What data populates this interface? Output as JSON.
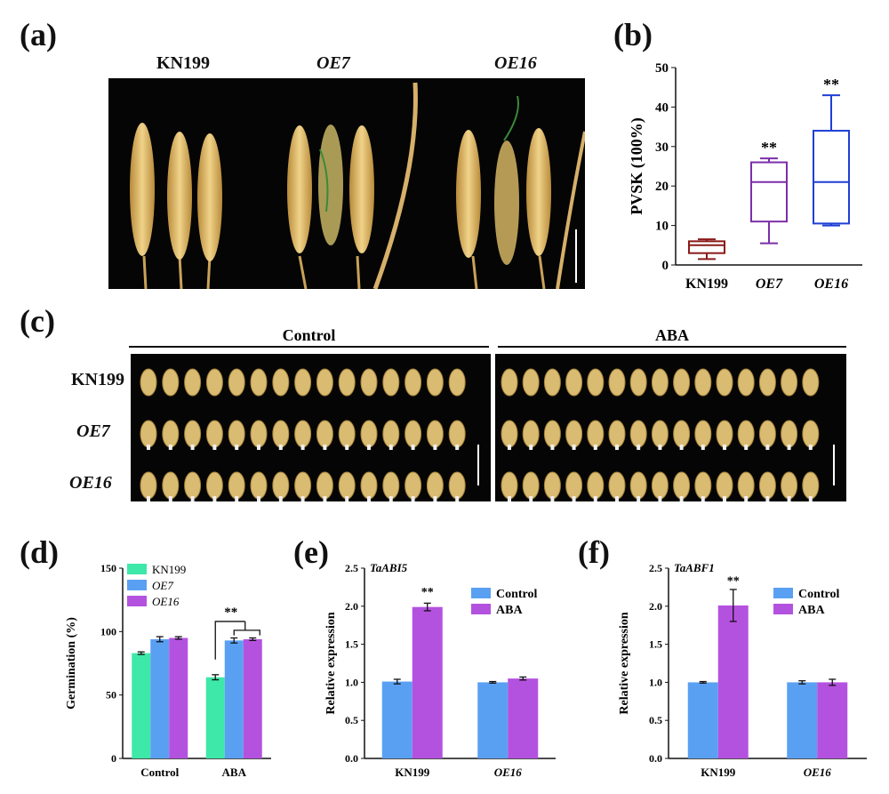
{
  "panels": {
    "a": "(a)",
    "b": "(b)",
    "c": "(c)",
    "d": "(d)",
    "e": "(e)",
    "f": "(f)"
  },
  "panel_a": {
    "genotypes": [
      "KN199",
      "OE7",
      "OE16"
    ]
  },
  "panel_c": {
    "conditions": [
      "Control",
      "ABA"
    ],
    "genotypes": [
      "KN199",
      "OE7",
      "OE16"
    ]
  },
  "chart_data": [
    {
      "id": "b",
      "type": "box",
      "ylabel": "PVSK (100%)",
      "categories": [
        "KN199",
        "OE7",
        "OE16"
      ],
      "ylim": [
        0,
        50
      ],
      "yticks": [
        0,
        10,
        20,
        30,
        40,
        50
      ],
      "boxes": [
        {
          "min": 1.5,
          "q1": 3.0,
          "median": 5.0,
          "q3": 6.0,
          "max": 6.5,
          "color": "#8b1a1a",
          "sig": ""
        },
        {
          "min": 5.5,
          "q1": 11.0,
          "median": 21.0,
          "q3": 26.0,
          "max": 27.0,
          "color": "#7b2fa8",
          "sig": "**"
        },
        {
          "min": 10.0,
          "q1": 10.5,
          "median": 21.0,
          "q3": 34.0,
          "max": 43.0,
          "color": "#1f3fd6",
          "sig": "**"
        }
      ]
    },
    {
      "id": "d",
      "type": "bar",
      "ylabel": "Germination (%)",
      "categories": [
        "Control",
        "ABA"
      ],
      "ylim": [
        0,
        150
      ],
      "yticks": [
        0,
        50,
        100,
        150
      ],
      "series": [
        {
          "name": "KN199",
          "color": "#3ee8a8",
          "values": [
            83,
            64
          ],
          "errors": [
            1,
            2
          ]
        },
        {
          "name": "OE7",
          "color": "#5aa0f2",
          "values": [
            94,
            93
          ],
          "errors": [
            2,
            2
          ]
        },
        {
          "name": "OE16",
          "color": "#b452e0",
          "values": [
            95,
            94
          ],
          "errors": [
            1,
            1
          ]
        }
      ],
      "annotation": "**"
    },
    {
      "id": "e",
      "type": "bar",
      "gene": "TaABI5",
      "ylabel": "Relative expression",
      "categories": [
        "KN199",
        "OE16"
      ],
      "ylim": [
        0,
        2.5
      ],
      "yticks": [
        "0.0",
        "0.5",
        "1.0",
        "1.5",
        "2.0",
        "2.5"
      ],
      "series": [
        {
          "name": "Control",
          "color": "#5aa0f2",
          "values": [
            1.01,
            1.0
          ],
          "errors": [
            0.03,
            0.01
          ]
        },
        {
          "name": "ABA",
          "color": "#b452e0",
          "values": [
            1.99,
            1.05
          ],
          "errors": [
            0.05,
            0.02
          ]
        }
      ],
      "annotation": "**"
    },
    {
      "id": "f",
      "type": "bar",
      "gene": "TaABF1",
      "ylabel": "Relative expression",
      "categories": [
        "KN199",
        "OE16"
      ],
      "ylim": [
        0,
        2.5
      ],
      "yticks": [
        "0.0",
        "0.5",
        "1.0",
        "1.5",
        "2.0",
        "2.5"
      ],
      "series": [
        {
          "name": "Control",
          "color": "#5aa0f2",
          "values": [
            1.0,
            1.0
          ],
          "errors": [
            0.01,
            0.02
          ]
        },
        {
          "name": "ABA",
          "color": "#b452e0",
          "values": [
            2.01,
            1.0
          ],
          "errors": [
            0.21,
            0.04
          ]
        }
      ],
      "annotation": "**"
    }
  ]
}
